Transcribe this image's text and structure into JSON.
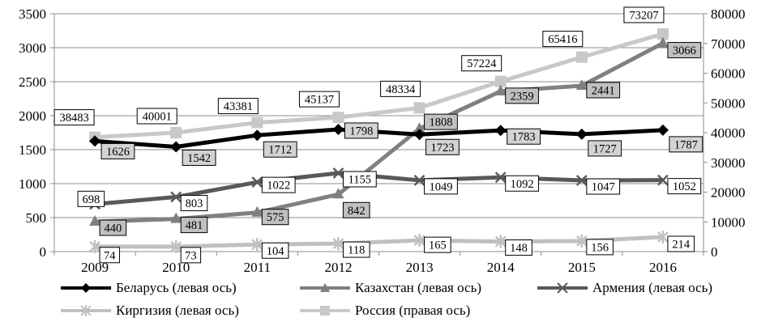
{
  "chart_data": {
    "type": "line",
    "categories": [
      "2009",
      "2010",
      "2011",
      "2012",
      "2013",
      "2014",
      "2015",
      "2016"
    ],
    "left_axis": {
      "ylim": [
        0,
        3500
      ],
      "ticks": [
        0,
        500,
        1000,
        1500,
        2000,
        2500,
        3000,
        3500
      ]
    },
    "right_axis": {
      "ylim": [
        0,
        80000
      ],
      "ticks": [
        0,
        10000,
        20000,
        30000,
        40000,
        50000,
        60000,
        70000,
        80000
      ]
    },
    "grid": true,
    "legend_position": "bottom",
    "series": [
      {
        "name": "Беларусь (левая ось)",
        "axis": "left",
        "color": "#000000",
        "marker": "diamond",
        "label_fill": "#d3d3d3",
        "values": [
          1626,
          1542,
          1712,
          1798,
          1723,
          1783,
          1727,
          1787
        ]
      },
      {
        "name": "Казахстан (левая ось)",
        "axis": "left",
        "color": "#808080",
        "marker": "triangle",
        "label_fill": "#c0c0c0",
        "values": [
          440,
          481,
          575,
          842,
          1808,
          2359,
          2441,
          3066
        ]
      },
      {
        "name": "Армения (левая ось)",
        "axis": "left",
        "color": "#595959",
        "marker": "x",
        "label_fill": "#ffffff",
        "values": [
          698,
          803,
          1022,
          1155,
          1049,
          1092,
          1047,
          1052
        ]
      },
      {
        "name": "Киргизия (левая ось)",
        "axis": "left",
        "color": "#c0c0c0",
        "marker": "star",
        "label_fill": "#ffffff",
        "values": [
          74,
          73,
          104,
          118,
          165,
          148,
          156,
          214
        ]
      },
      {
        "name": "Россия (правая ось)",
        "axis": "right",
        "color": "#c8c8c8",
        "marker": "square",
        "label_fill": "#ffffff",
        "values": [
          38483,
          40001,
          43381,
          45137,
          48334,
          57224,
          65416,
          73207
        ]
      }
    ]
  }
}
